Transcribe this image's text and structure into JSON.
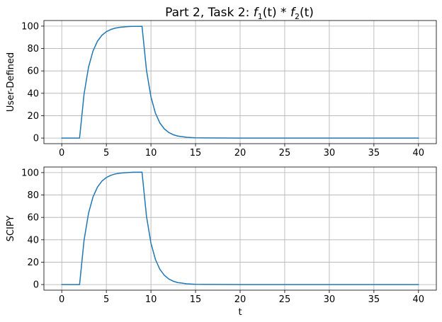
{
  "chart_data": [
    {
      "type": "line",
      "title": {
        "prefix": "Part 2, Task 2: ",
        "f1": "f",
        "f1_sub": "1",
        "f1_arg": "(t)",
        "op": " * ",
        "f2": "f",
        "f2_sub": "2",
        "f2_arg": "(t)"
      },
      "xlabel": "",
      "ylabel": "User-Defined",
      "xlim": [
        -2,
        42
      ],
      "ylim": [
        -5,
        105
      ],
      "xticks": [
        0,
        5,
        10,
        15,
        20,
        25,
        30,
        35,
        40
      ],
      "yticks": [
        0,
        20,
        40,
        60,
        80,
        100
      ],
      "grid": true,
      "line_color": "#1f77b4",
      "series": [
        {
          "x": [
            0,
            2,
            2.5,
            3,
            3.5,
            4,
            4.5,
            5,
            5.5,
            6,
            6.5,
            7,
            7.5,
            8,
            8.5,
            9,
            9.5,
            10,
            10.5,
            11,
            11.5,
            12,
            12.5,
            13,
            14,
            15,
            16,
            20,
            25,
            30,
            35,
            40
          ],
          "y": [
            0,
            0,
            39.3,
            63.2,
            77.7,
            86.5,
            91.8,
            95.0,
            97.0,
            98.2,
            98.9,
            99.3,
            99.6,
            99.8,
            99.8,
            99.9,
            60.6,
            36.8,
            22.3,
            13.5,
            8.2,
            5.0,
            3.0,
            1.8,
            0.7,
            0.2,
            0.1,
            0,
            0,
            0,
            0,
            0
          ]
        }
      ]
    },
    {
      "type": "line",
      "title": "",
      "xlabel": "t",
      "ylabel": "SCIPY",
      "xlim": [
        -2,
        42
      ],
      "ylim": [
        -5,
        105
      ],
      "xticks": [
        0,
        5,
        10,
        15,
        20,
        25,
        30,
        35,
        40
      ],
      "yticks": [
        0,
        20,
        40,
        60,
        80,
        100
      ],
      "grid": true,
      "line_color": "#1f77b4",
      "series": [
        {
          "x": [
            0,
            2,
            2.5,
            3,
            3.5,
            4,
            4.5,
            5,
            5.5,
            6,
            6.5,
            7,
            7.5,
            8,
            8.5,
            9,
            9.5,
            10,
            10.5,
            11,
            11.5,
            12,
            12.5,
            13,
            14,
            15,
            16,
            20,
            25,
            30,
            35,
            40
          ],
          "y": [
            0,
            0,
            39.5,
            63.6,
            78.2,
            87.0,
            92.4,
            95.6,
            97.6,
            98.8,
            99.5,
            99.9,
            100.1,
            100.3,
            100.3,
            100.4,
            61.0,
            37.0,
            22.5,
            13.6,
            8.3,
            5.0,
            3.0,
            1.8,
            0.7,
            0.2,
            0.1,
            0,
            0,
            0,
            0,
            0
          ]
        }
      ]
    }
  ]
}
